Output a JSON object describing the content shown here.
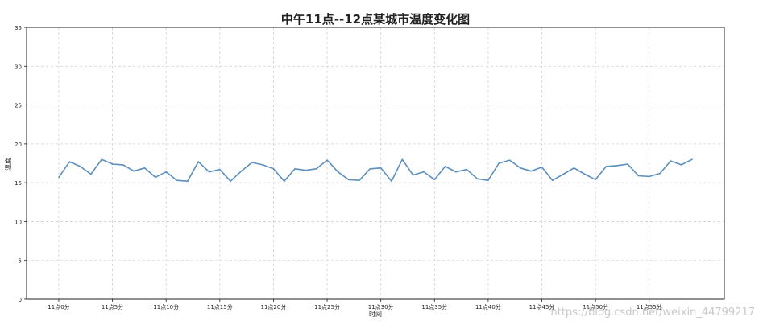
{
  "chart_data": {
    "type": "line",
    "title": "中午11点--12点某城市温度变化图",
    "xlabel": "时间",
    "ylabel": "温度",
    "xlim": [
      -3,
      62
    ],
    "ylim": [
      0,
      35
    ],
    "yticks": [
      0,
      5,
      10,
      15,
      20,
      25,
      30,
      35
    ],
    "xticks": [
      0,
      5,
      10,
      15,
      20,
      25,
      30,
      35,
      40,
      45,
      50,
      55
    ],
    "xtick_labels": [
      "11点0分",
      "11点5分",
      "11点10分",
      "11点15分",
      "11点20分",
      "11点25分",
      "11点30分",
      "11点35分",
      "11点40分",
      "11点45分",
      "11点50分",
      "11点55分"
    ],
    "grid": true,
    "line_color": "#5b8fbe",
    "series": [
      {
        "x": [
          0,
          1,
          2,
          3,
          4,
          5,
          6,
          7,
          8,
          9,
          10,
          11,
          12,
          13,
          14,
          15,
          16,
          17,
          18,
          19,
          20,
          21,
          22,
          23,
          24,
          25,
          26,
          27,
          28,
          29,
          30,
          31,
          32,
          33,
          34,
          35,
          36,
          37,
          38,
          39,
          40,
          41,
          42,
          43,
          44,
          45,
          46,
          47,
          48,
          49,
          50,
          51,
          52,
          53,
          54,
          55,
          56,
          57,
          58,
          59
        ],
        "values": [
          15.7,
          17.7,
          17.1,
          16.1,
          18.0,
          17.4,
          17.3,
          16.5,
          16.9,
          15.7,
          16.4,
          15.3,
          15.2,
          17.7,
          16.4,
          16.7,
          15.2,
          16.5,
          17.6,
          17.3,
          16.8,
          15.2,
          16.8,
          16.6,
          16.8,
          17.9,
          16.4,
          15.4,
          15.3,
          16.8,
          16.9,
          15.2,
          18.0,
          16.0,
          16.4,
          15.4,
          17.1,
          16.4,
          16.7,
          15.5,
          15.3,
          17.5,
          17.9,
          16.9,
          16.5,
          17.0,
          15.3,
          16.1,
          16.9,
          16.1,
          15.4,
          17.1,
          17.2,
          17.4,
          15.9,
          15.8,
          16.2,
          17.8,
          17.3,
          18.0
        ]
      }
    ]
  },
  "watermark": "https://blog.csdn.net/weixin_44799217"
}
